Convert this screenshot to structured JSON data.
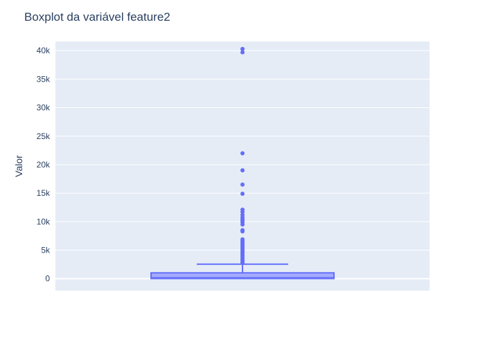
{
  "chart_data": {
    "type": "box",
    "title": "Boxplot da variável feature2",
    "xlabel": "",
    "ylabel": "Valor",
    "ylim": [
      -2100,
      41600
    ],
    "yticks": [
      0,
      5000,
      10000,
      15000,
      20000,
      25000,
      30000,
      35000,
      40000
    ],
    "ytick_labels": [
      "0",
      "5k",
      "10k",
      "15k",
      "20k",
      "25k",
      "30k",
      "35k",
      "40k"
    ],
    "grid": true,
    "colors": {
      "plot_bg": "#e5ecf6",
      "grid": "#ffffff",
      "box_line": "#636efa",
      "box_fill": "#a5abfc",
      "text": "#2a3f5f"
    },
    "box": {
      "min": 0,
      "q1": 20,
      "median": 150,
      "q3": 1020,
      "upper_whisker": 2550,
      "outliers": [
        40300,
        39700,
        22000,
        19000,
        16500,
        14900,
        12100,
        11700,
        11200,
        10800,
        10500,
        10200,
        9900,
        9500,
        8500,
        8300,
        6900,
        6600,
        6300,
        6000,
        5700,
        5500,
        5200,
        4900,
        4600,
        4300,
        4000,
        3700,
        3400,
        3100,
        2800
      ]
    }
  }
}
